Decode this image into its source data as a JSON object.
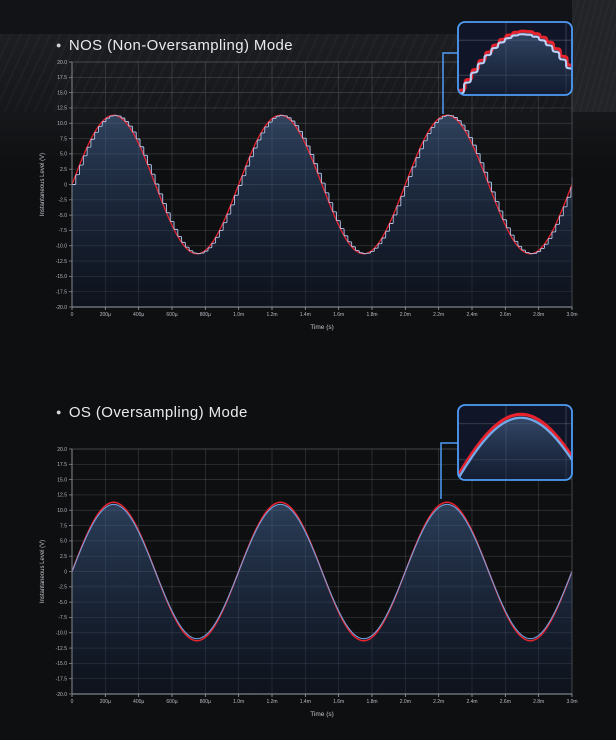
{
  "page": {
    "background_color": "#0e0f11",
    "accent_blue": "#4f9cf7",
    "grid_color": "rgba(197,203,213,0.22)"
  },
  "chart_data": [
    {
      "type": "line",
      "title": "NOS (Non-Oversampling) Mode",
      "bullet": "●",
      "xlabel": "Time (s)",
      "ylabel": "Instantaneous Level (V)",
      "x_range_seconds": [
        0,
        0.003
      ],
      "ylim": [
        -20,
        20
      ],
      "grid": true,
      "legend": "none",
      "xtick_labels": [
        "0",
        "200µ",
        "400µ",
        "600µ",
        "800µ",
        "1.0m",
        "1.2m",
        "1.4m",
        "1.6m",
        "1.8m",
        "2.0m",
        "2.2m",
        "2.4m",
        "2.6m",
        "2.8m",
        "3.0m"
      ],
      "ytick_values": [
        20,
        17.5,
        15,
        12.5,
        10,
        7.5,
        5,
        2.5,
        0,
        -2.5,
        -5,
        -7.5,
        -10,
        -12.5,
        -15,
        -17.5,
        -20
      ],
      "ytick_labels": [
        "20.0",
        "17.5",
        "15.0",
        "12.5",
        "10.0",
        "7.5",
        "5.0",
        "2.5",
        "0",
        "-2.5",
        "-5.0",
        "-7.5",
        "-10.0",
        "-12.5",
        "-15.0",
        "-17.5",
        "-20.0"
      ],
      "signal": {
        "shape": "sine",
        "amplitude_v": 11.3,
        "frequency_hz": 1000,
        "cycles_shown": 3,
        "dac_mode": "zero-order-hold",
        "sample_rate_hz": 44100
      },
      "series": [
        {
          "name": "ideal-analog-signal",
          "color": "#e8232e"
        },
        {
          "name": "nos-dac-stepped-output",
          "color": "#bdd0f5"
        }
      ],
      "inset": {
        "content": "zoom of waveform peak showing staircase steps",
        "window_seconds": [
          0.00204,
          0.00242
        ]
      }
    },
    {
      "type": "line",
      "title": "OS (Oversampling) Mode",
      "bullet": "●",
      "xlabel": "Time (s)",
      "ylabel": "Instantaneous Level (V)",
      "x_range_seconds": [
        0,
        0.003
      ],
      "ylim": [
        -20,
        20
      ],
      "grid": true,
      "legend": "none",
      "xtick_labels": [
        "0",
        "200µ",
        "400µ",
        "600µ",
        "800µ",
        "1.0m",
        "1.2m",
        "1.4m",
        "1.6m",
        "1.8m",
        "2.0m",
        "2.2m",
        "2.4m",
        "2.6m",
        "2.8m",
        "3.0m"
      ],
      "ytick_values": [
        20,
        17.5,
        15,
        12.5,
        10,
        7.5,
        5,
        2.5,
        0,
        -2.5,
        -5,
        -7.5,
        -10,
        -12.5,
        -15,
        -17.5,
        -20
      ],
      "ytick_labels": [
        "20.0",
        "17.5",
        "15.0",
        "12.5",
        "10.0",
        "7.5",
        "5.0",
        "2.5",
        "0",
        "-2.5",
        "-5.0",
        "-7.5",
        "-10.0",
        "-12.5",
        "-15.0",
        "-17.5",
        "-20.0"
      ],
      "signal": {
        "shape": "sine",
        "amplitude_v": 11.3,
        "frequency_hz": 1000,
        "cycles_shown": 3,
        "dac_mode": "oversampled-smooth"
      },
      "series": [
        {
          "name": "ideal-analog-signal",
          "color": "#e8232e"
        },
        {
          "name": "os-dac-smooth-output",
          "color": "#74a9e8"
        }
      ],
      "inset": {
        "content": "zoom of waveform peak showing smooth reconstructed curve",
        "window_seconds": [
          0.00204,
          0.00242
        ]
      }
    }
  ]
}
